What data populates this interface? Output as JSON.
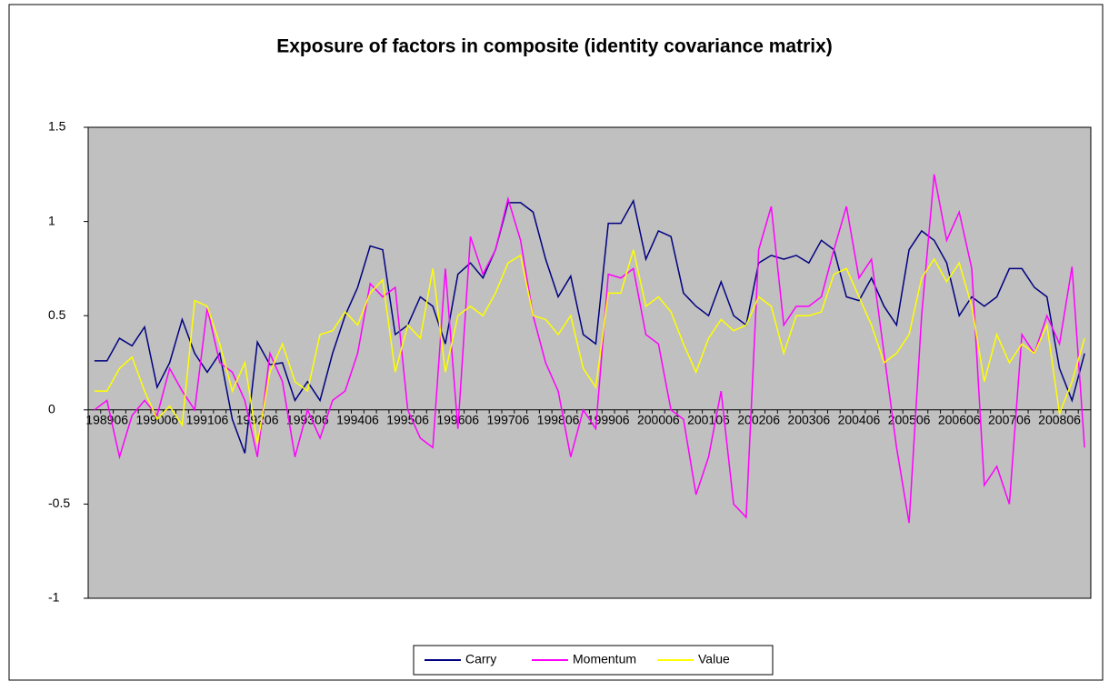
{
  "chart_data": {
    "type": "line",
    "title": "Exposure of factors in composite (identity covariance matrix)",
    "categories": [
      null,
      "198906",
      null,
      null,
      null,
      "199006",
      null,
      null,
      null,
      "199106",
      null,
      null,
      null,
      "199206",
      null,
      null,
      null,
      "199306",
      null,
      null,
      null,
      "199406",
      null,
      null,
      null,
      "199506",
      null,
      null,
      null,
      "199606",
      null,
      null,
      null,
      "199706",
      null,
      null,
      null,
      "199806",
      null,
      null,
      null,
      "199906",
      null,
      null,
      null,
      "200006",
      null,
      null,
      null,
      "200106",
      null,
      null,
      null,
      "200206",
      null,
      null,
      null,
      "200306",
      null,
      null,
      null,
      "200406",
      null,
      null,
      null,
      "200506",
      null,
      null,
      null,
      "200606",
      null,
      null,
      null,
      "200706",
      null,
      null,
      null,
      "200806",
      null,
      null
    ],
    "series": [
      {
        "name": "Carry",
        "color": "#000080",
        "values": [
          0.26,
          0.26,
          0.38,
          0.34,
          0.44,
          0.12,
          0.25,
          0.48,
          0.3,
          0.2,
          0.3,
          -0.05,
          -0.23,
          0.36,
          0.24,
          0.25,
          0.05,
          0.15,
          0.05,
          0.3,
          0.5,
          0.65,
          0.87,
          0.85,
          0.4,
          0.45,
          0.6,
          0.55,
          0.35,
          0.72,
          0.78,
          0.7,
          0.85,
          1.1,
          1.1,
          1.05,
          0.8,
          0.6,
          0.71,
          0.4,
          0.35,
          0.99,
          0.99,
          1.11,
          0.8,
          0.95,
          0.92,
          0.62,
          0.55,
          0.5,
          0.68,
          0.5,
          0.45,
          0.78,
          0.82,
          0.8,
          0.82,
          0.78,
          0.9,
          0.85,
          0.6,
          0.58,
          0.7,
          0.55,
          0.45,
          0.85,
          0.95,
          0.9,
          0.78,
          0.5,
          0.6,
          0.55,
          0.6,
          0.75,
          0.75,
          0.65,
          0.6,
          0.22,
          0.05,
          0.3
        ]
      },
      {
        "name": "Momentum",
        "color": "#ff00ff",
        "values": [
          0,
          0.05,
          -0.25,
          -0.03,
          0.05,
          -0.03,
          0.22,
          0.1,
          0,
          0.54,
          0.25,
          0.2,
          0.05,
          -0.25,
          0.3,
          0.15,
          -0.25,
          0,
          -0.15,
          0.05,
          0.1,
          0.3,
          0.67,
          0.6,
          0.65,
          0,
          -0.15,
          -0.2,
          0.75,
          -0.1,
          0.92,
          0.72,
          0.85,
          1.12,
          0.9,
          0.5,
          0.25,
          0.1,
          -0.25,
          0,
          -0.1,
          0.72,
          0.7,
          0.75,
          0.4,
          0.35,
          0,
          -0.05,
          -0.45,
          -0.25,
          0.1,
          -0.5,
          -0.57,
          0.85,
          1.08,
          0.45,
          0.55,
          0.55,
          0.6,
          0.85,
          1.08,
          0.7,
          0.8,
          0.3,
          -0.2,
          -0.6,
          0.5,
          1.25,
          0.9,
          1.05,
          0.75,
          -0.4,
          -0.3,
          -0.5,
          0.4,
          0.3,
          0.5,
          0.35,
          0.76,
          -0.2
        ]
      },
      {
        "name": "Value",
        "color": "#ffff00",
        "values": [
          0.1,
          0.1,
          0.22,
          0.28,
          0.1,
          -0.05,
          0.02,
          -0.08,
          0.58,
          0.55,
          0.35,
          0.1,
          0.25,
          -0.18,
          0.2,
          0.35,
          0.15,
          0.1,
          0.4,
          0.42,
          0.52,
          0.45,
          0.62,
          0.69,
          0.2,
          0.45,
          0.38,
          0.75,
          0.2,
          0.5,
          0.55,
          0.5,
          0.62,
          0.78,
          0.82,
          0.5,
          0.48,
          0.4,
          0.5,
          0.22,
          0.12,
          0.62,
          0.62,
          0.85,
          0.55,
          0.6,
          0.52,
          0.35,
          0.2,
          0.38,
          0.48,
          0.42,
          0.45,
          0.6,
          0.55,
          0.3,
          0.5,
          0.5,
          0.52,
          0.72,
          0.75,
          0.6,
          0.45,
          0.25,
          0.3,
          0.4,
          0.7,
          0.8,
          0.68,
          0.78,
          0.55,
          0.15,
          0.4,
          0.25,
          0.35,
          0.3,
          0.45,
          -0.02,
          0.15,
          0.38
        ]
      }
    ],
    "ylim": [
      -1,
      1.5
    ],
    "yticks": [
      -1,
      -0.5,
      0,
      0.5,
      1,
      1.5
    ],
    "grid": false,
    "legend": "bottom",
    "plot_background": "#c0c0c0"
  }
}
